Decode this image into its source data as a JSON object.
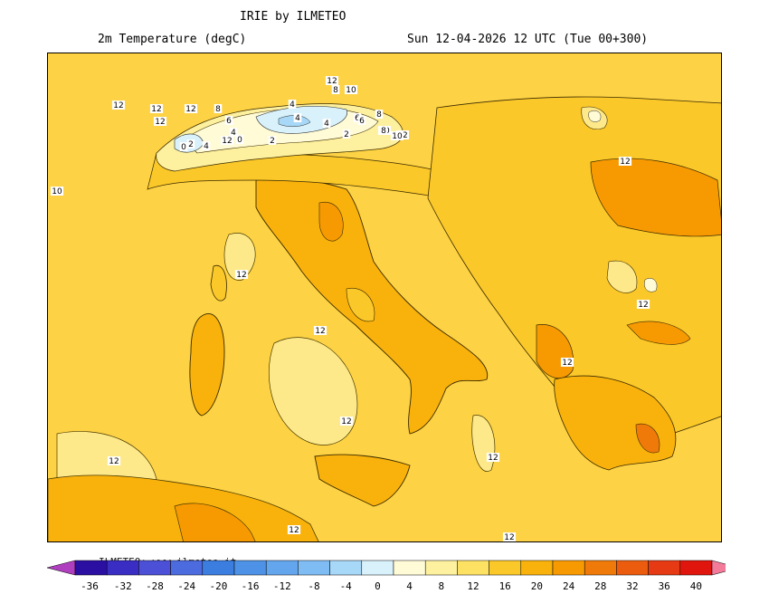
{
  "header": {
    "title": "IRIE by ILMETEO",
    "subtitle": "2m Temperature (degC)",
    "valid_time": "Sun 12-04-2026 12 UTC (Tue 00+300)"
  },
  "contour_labels": [
    "12",
    "12",
    "12",
    "8",
    "6",
    "4",
    "0",
    "2",
    "4",
    "0",
    "2",
    "4",
    "6",
    "8",
    "10",
    "12",
    "4",
    "2",
    "12",
    "10",
    "8",
    "6",
    "4",
    "8",
    "10",
    "12",
    "12",
    "10",
    "12",
    "12",
    "12",
    "12",
    "12",
    "12",
    "12",
    "12",
    "12",
    "12"
  ],
  "watermark": "ILMETEO: www.ilmeteo.it",
  "legend": {
    "ticks": [
      "-36",
      "-32",
      "-28",
      "-24",
      "-20",
      "-16",
      "-12",
      "-8",
      "-4",
      "0",
      "4",
      "8",
      "12",
      "16",
      "20",
      "24",
      "28",
      "32",
      "36",
      "40"
    ],
    "colors": [
      "#2b0fa3",
      "#3a2dc4",
      "#4b50d6",
      "#4c6bdf",
      "#3c7ee0",
      "#4d92e6",
      "#64a6ee",
      "#7fbcf3",
      "#a7d8f8",
      "#d8f1fb",
      "#fffbd6",
      "#fdf09e",
      "#fde162",
      "#fbc829",
      "#f9b20c",
      "#f79a02",
      "#f07a09",
      "#ec5c0f",
      "#e63a14",
      "#e0160e"
    ],
    "under_color": "#b03fc0",
    "over_color": "#f47a9a"
  }
}
